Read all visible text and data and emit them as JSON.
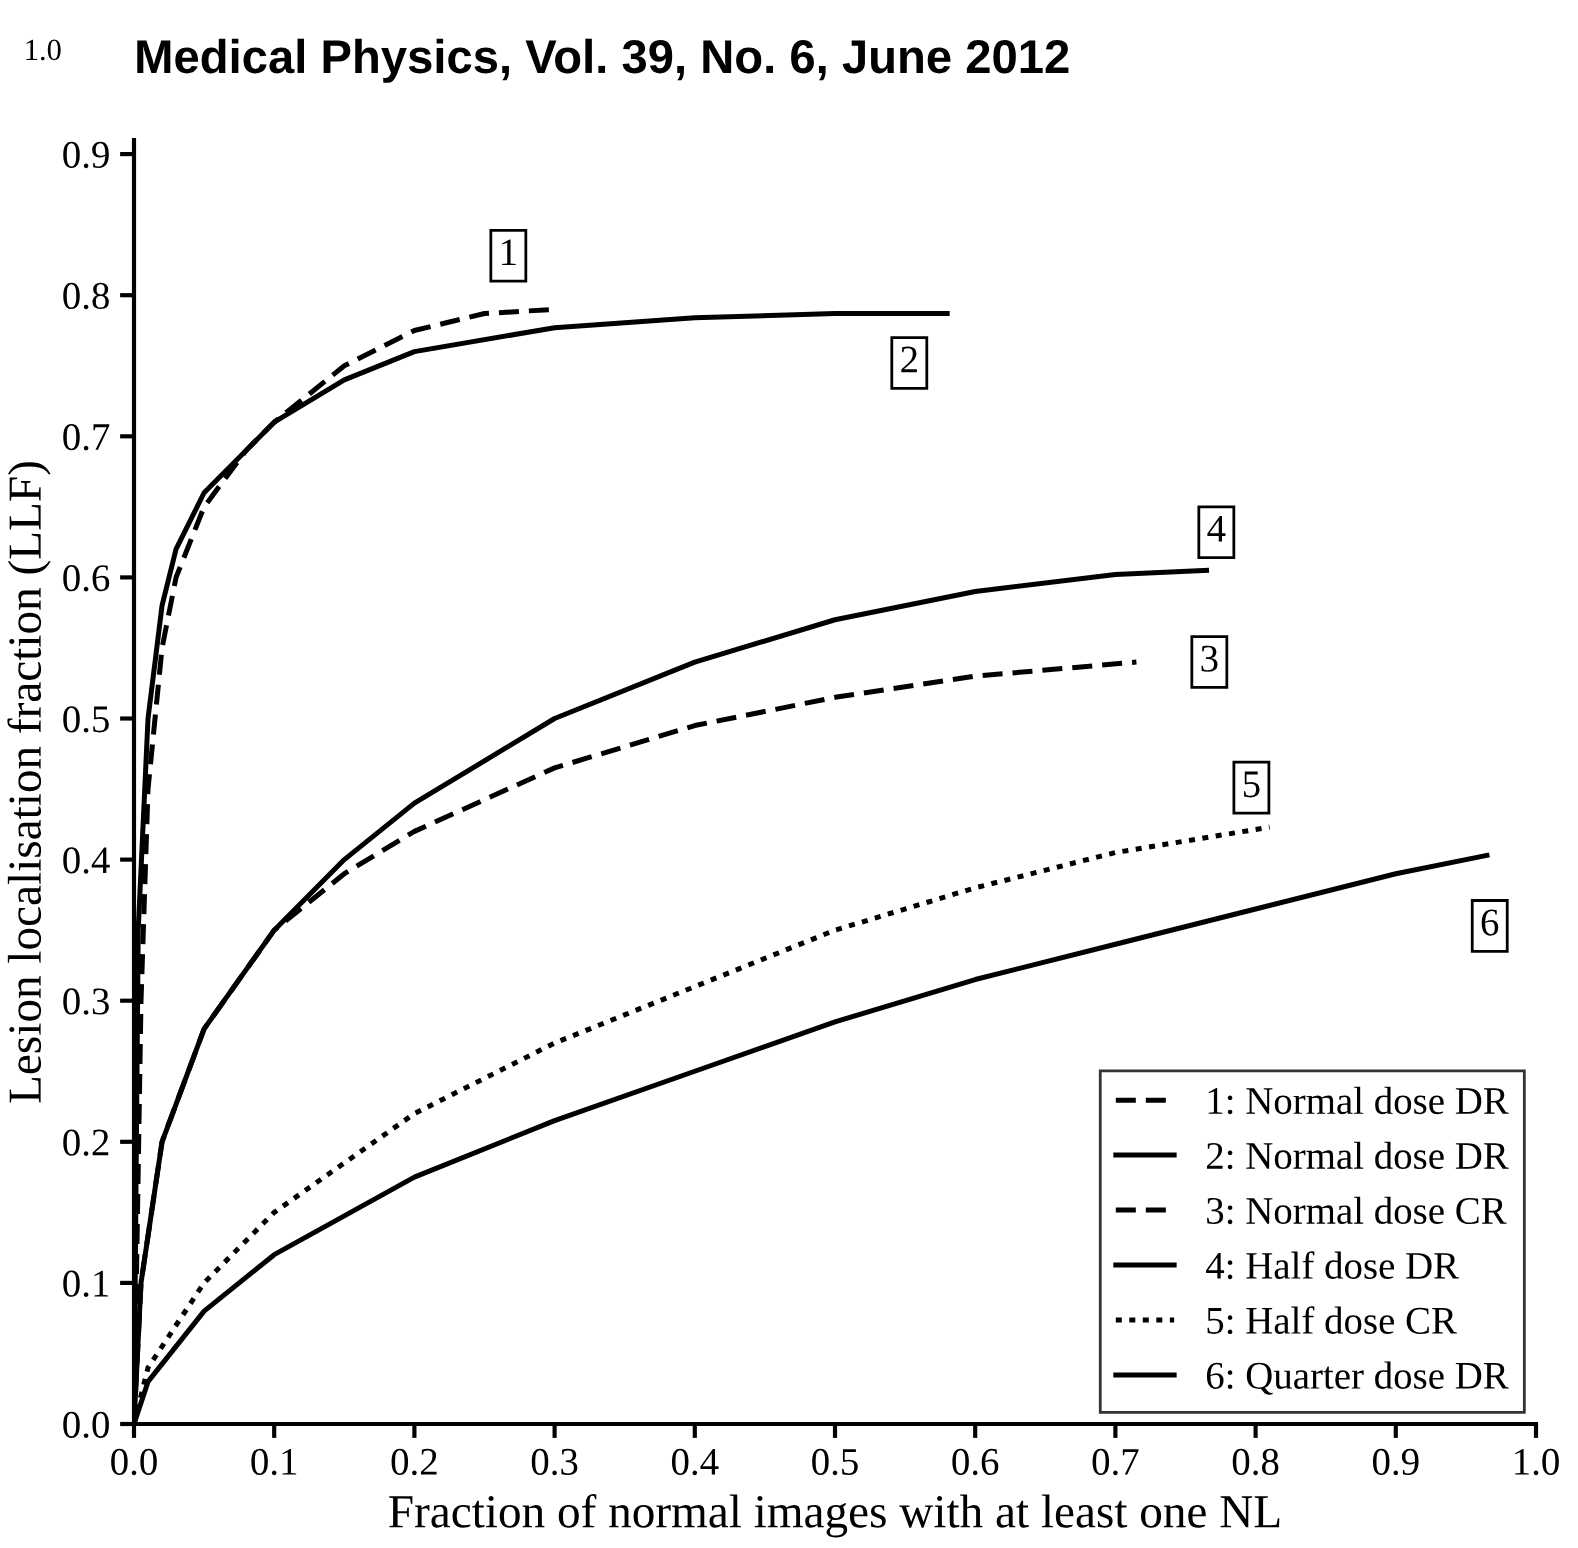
{
  "chart_data": {
    "type": "line",
    "xlabel": "Fraction of normal images with at least one NL",
    "ylabel": "Lesion localisation fraction (LLF)",
    "xlim": [
      0,
      1.0
    ],
    "ylim": [
      0,
      0.91
    ],
    "xticks": [
      {
        "value": 0,
        "label": "0.0"
      },
      0.1,
      0.2,
      0.3,
      0.4,
      0.5,
      0.6,
      0.7,
      0.8,
      0.9,
      {
        "value": 1,
        "label": "1.0"
      }
    ],
    "yticks": [
      {
        "value": 0,
        "label": "0.0"
      },
      0.1,
      0.2,
      0.3,
      0.4,
      0.5,
      0.6,
      0.7,
      0.8,
      0.9
    ],
    "grid": false,
    "legend": "bottom right",
    "marker": "none",
    "series": [
      {
        "name": "1: Normal dose DR",
        "color": "#000000",
        "line_style": "dashed",
        "x": [
          0,
          0.005,
          0.01,
          0.02,
          0.03,
          0.05,
          0.08,
          0.1,
          0.15,
          0.2,
          0.25,
          0.3
        ],
        "values": [
          0,
          0.3,
          0.45,
          0.55,
          0.6,
          0.65,
          0.69,
          0.71,
          0.75,
          0.775,
          0.787,
          0.79
        ]
      },
      {
        "name": "2: Normal dose DR",
        "color": "#000000",
        "line_style": "solid",
        "x": [
          0,
          0.003,
          0.01,
          0.02,
          0.03,
          0.05,
          0.1,
          0.15,
          0.2,
          0.3,
          0.4,
          0.5,
          0.58
        ],
        "values": [
          0,
          0.35,
          0.5,
          0.58,
          0.62,
          0.66,
          0.71,
          0.74,
          0.76,
          0.777,
          0.784,
          0.787,
          0.787
        ]
      },
      {
        "name": "3: Normal dose CR",
        "color": "#000000",
        "line_style": "dashed",
        "x": [
          0,
          0.005,
          0.02,
          0.05,
          0.1,
          0.15,
          0.2,
          0.3,
          0.4,
          0.5,
          0.6,
          0.715
        ],
        "values": [
          0,
          0.1,
          0.2,
          0.28,
          0.35,
          0.39,
          0.42,
          0.465,
          0.495,
          0.515,
          0.53,
          0.54
        ]
      },
      {
        "name": "4: Half dose DR",
        "color": "#000000",
        "line_style": "solid",
        "x": [
          0,
          0.005,
          0.02,
          0.05,
          0.1,
          0.15,
          0.2,
          0.3,
          0.4,
          0.5,
          0.6,
          0.7,
          0.765
        ],
        "values": [
          0,
          0.1,
          0.2,
          0.28,
          0.35,
          0.4,
          0.44,
          0.5,
          0.54,
          0.57,
          0.59,
          0.602,
          0.605
        ]
      },
      {
        "name": "5: Half dose CR",
        "color": "#000000",
        "line_style": "dotted",
        "x": [
          0,
          0.01,
          0.05,
          0.1,
          0.2,
          0.3,
          0.4,
          0.5,
          0.6,
          0.7,
          0.81
        ],
        "values": [
          0,
          0.04,
          0.1,
          0.15,
          0.22,
          0.27,
          0.31,
          0.35,
          0.38,
          0.405,
          0.423
        ]
      },
      {
        "name": "6: Quarter dose DR",
        "color": "#000000",
        "line_style": "solid",
        "x": [
          0,
          0.01,
          0.05,
          0.1,
          0.2,
          0.3,
          0.4,
          0.5,
          0.6,
          0.7,
          0.8,
          0.9,
          0.965
        ],
        "values": [
          0,
          0.03,
          0.08,
          0.12,
          0.175,
          0.215,
          0.25,
          0.285,
          0.315,
          0.34,
          0.365,
          0.39,
          0.403
        ]
      }
    ],
    "annotations": [
      "1.0",
      "Medical Physics, Vol. 39, No. 6, June 2012",
      {
        "text": "1",
        "x": 0.267,
        "y": 0.828
      },
      {
        "text": "2",
        "x": 0.553,
        "y": 0.752
      },
      {
        "text": "4",
        "x": 0.772,
        "y": 0.632
      },
      {
        "text": "3",
        "x": 0.767,
        "y": 0.54
      },
      {
        "text": "5",
        "x": 0.797,
        "y": 0.451
      },
      {
        "text": "6",
        "x": 0.967,
        "y": 0.353
      }
    ]
  }
}
